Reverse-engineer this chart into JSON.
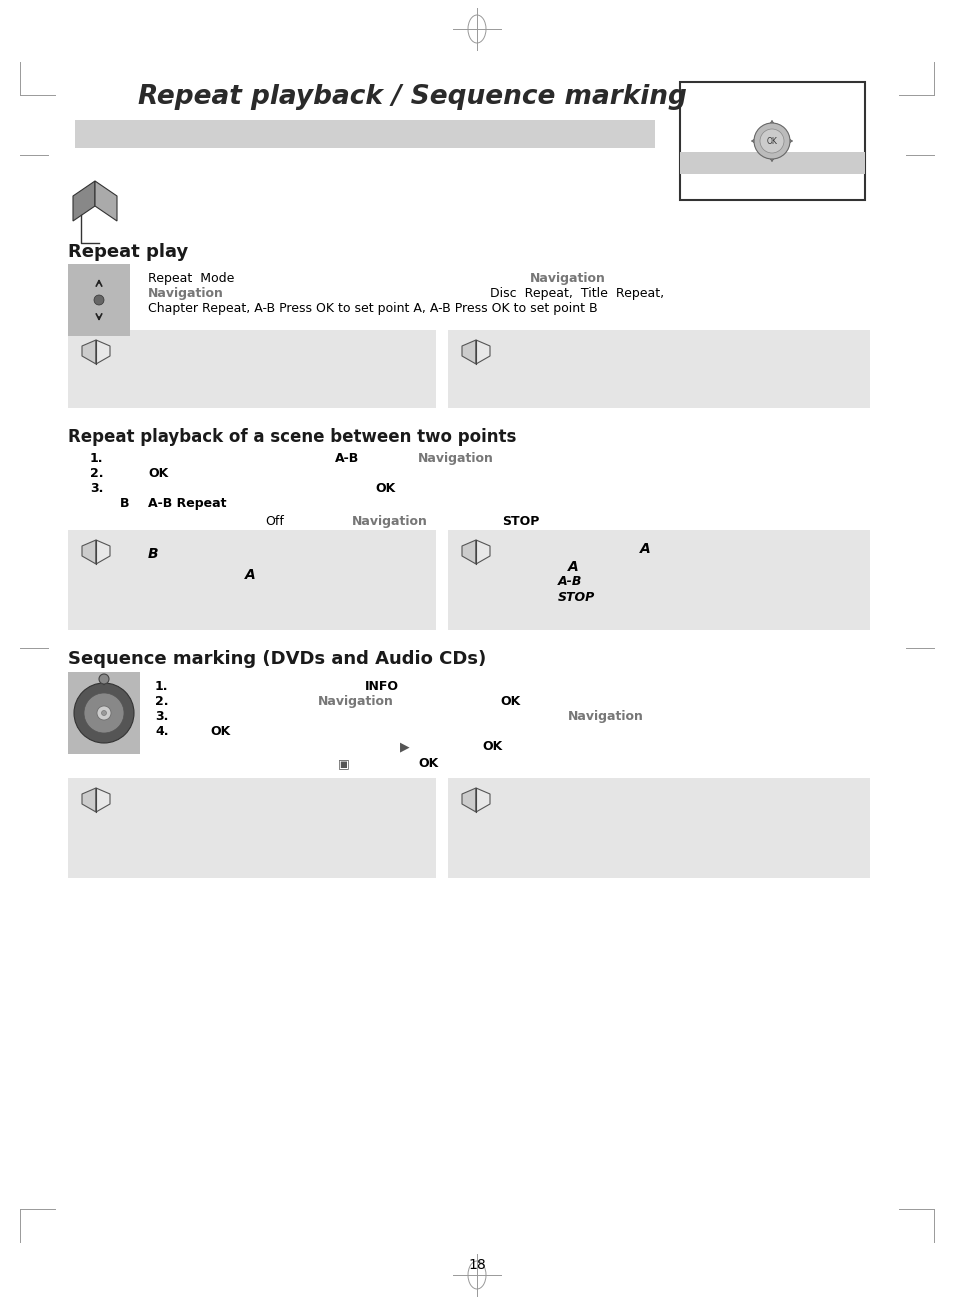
{
  "page_bg": "#ffffff",
  "gray_box_color": "#e8e8e8",
  "gray_icon_color": "#bbbbbb",
  "title_text": "Repeat playback / Sequence marking",
  "section1_title": "Repeat play",
  "section2_title": "Repeat playback of a scene between two points",
  "section3_title": "Sequence marking (DVDs and Audio CDs)",
  "page_number": "18",
  "nav_color": "#777777",
  "text_color": "#000000",
  "gray_text": "#777777"
}
